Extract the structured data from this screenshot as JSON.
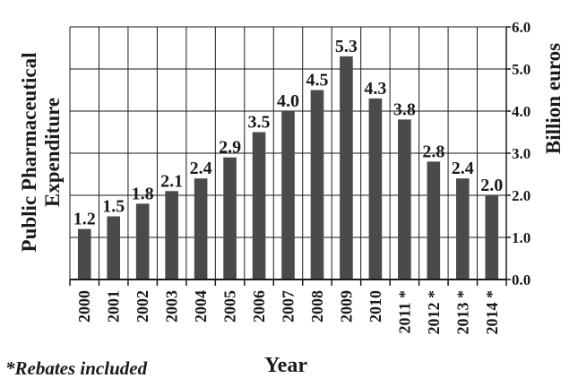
{
  "chart_data": {
    "type": "bar",
    "title": "",
    "categories": [
      "2000",
      "2001",
      "2002",
      "2003",
      "2004",
      "2005",
      "2006",
      "2007",
      "2008",
      "2009",
      "2010",
      "2011 *",
      "2012 *",
      "2013 *",
      "2014 *"
    ],
    "values": [
      1.2,
      1.5,
      1.8,
      2.1,
      2.4,
      2.9,
      3.5,
      4.0,
      4.5,
      5.3,
      4.3,
      3.8,
      2.8,
      2.4,
      2.0
    ],
    "data_labels": [
      "1.2",
      "1.5",
      "1.8",
      "2.1",
      "2.4",
      "2.9",
      "3.5",
      "4.0",
      "4.5",
      "5.3",
      "4.3",
      "3.8",
      "2.8",
      "2.4",
      "2.0"
    ],
    "xlabel": "Year",
    "ylabel_left": "Public Pharmaceutical Expenditure",
    "ylabel_right": "Billion euros",
    "ylim": [
      0,
      6
    ],
    "y_ticks": [
      "0.0",
      "1.0",
      "2.0",
      "3.0",
      "4.0",
      "5.0",
      "6.0"
    ],
    "y_axis_side": "right",
    "grid": true,
    "bar_color": "#4a4a4a"
  },
  "footnote": "*Rebates included"
}
